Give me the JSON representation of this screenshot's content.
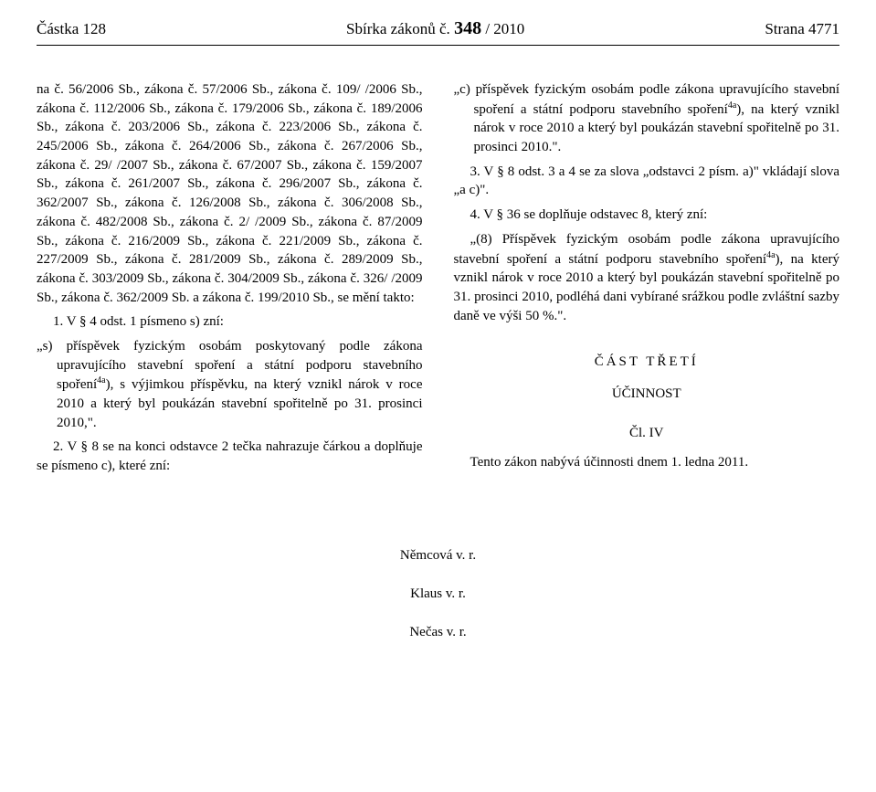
{
  "header": {
    "left": "Částka 128",
    "center_prefix": "Sbírka zákonů č. ",
    "center_num": "348",
    "center_suffix": " / 2010",
    "right": "Strana 4771"
  },
  "left_col": {
    "long_para": "na č. 56/2006 Sb., zákona č. 57/2006 Sb., zákona č. 109/ /2006 Sb., zákona č. 112/2006 Sb., zákona č. 179/2006 Sb., zákona č. 189/2006 Sb., zákona č. 203/2006 Sb., zákona č. 223/2006 Sb., zákona č. 245/2006 Sb., zákona č. 264/2006 Sb., zákona č. 267/2006 Sb., zákona č. 29/ /2007 Sb., zákona č. 67/2007 Sb., zákona č. 159/2007 Sb., zákona č. 261/2007 Sb., zákona č. 296/2007 Sb., zákona č. 362/2007 Sb., zákona č. 126/2008 Sb., zákona č. 306/2008 Sb., zákona č. 482/2008 Sb., zákona č. 2/ /2009 Sb., zákona č. 87/2009 Sb., zákona č. 216/2009 Sb., zákona č. 221/2009 Sb., zákona č. 227/2009 Sb., zákona č. 281/2009 Sb., zákona č. 289/2009 Sb., zákona č. 303/2009 Sb., zákona č. 304/2009 Sb., zákona č. 326/ /2009 Sb., zákona č. 362/2009 Sb. a zákona č. 199/2010 Sb., se mění takto:",
    "item1": "1.  V § 4 odst. 1 písmeno s) zní:",
    "item_s_pre": "„s) příspěvek fyzickým osobám poskytovaný podle zákona upravujícího stavební spoření a státní podporu stavebního spoření",
    "item_s_post": "), s výjimkou příspěvku, na který vznikl nárok v roce 2010 a který byl poukázán stavební spořitelně po 31. prosinci 2010,\".",
    "item2": "2.  V § 8 se na konci odstavce 2 tečka nahrazuje čárkou a doplňuje se písmeno c), které zní:"
  },
  "right_col": {
    "item_c_pre": "„c) příspěvek fyzickým osobám podle zákona upravujícího stavební spoření a státní podporu stavebního spoření",
    "item_c_post": "), na který vznikl nárok v roce 2010 a který byl poukázán stavební spořitelně po 31. prosinci 2010.\".",
    "item3": "3.  V § 8 odst. 3 a 4 se za slova „odstavci 2 písm. a)\" vkládají slova „a c)\".",
    "item4": "4.  V § 36 se doplňuje odstavec 8, který zní:",
    "para8_pre": "„(8) Příspěvek fyzickým osobám podle zákona upravujícího stavební spoření a státní podporu stavebního spoření",
    "para8_post": "), na který vznikl nárok v roce 2010 a který byl poukázán stavební spořitelně po 31. prosinci 2010, podléhá dani vybírané srážkou podle zvláštní sazby daně ve výši 50 %.\".",
    "part_title": "ČÁST TŘETÍ",
    "sub_title": "ÚČINNOST",
    "article": "Čl. IV",
    "effective": "Tento zákon nabývá účinnosti dnem 1. ledna 2011."
  },
  "sup": "4a",
  "signatures": {
    "s1": "Němcová v. r.",
    "s2": "Klaus v. r.",
    "s3": "Nečas v. r."
  }
}
